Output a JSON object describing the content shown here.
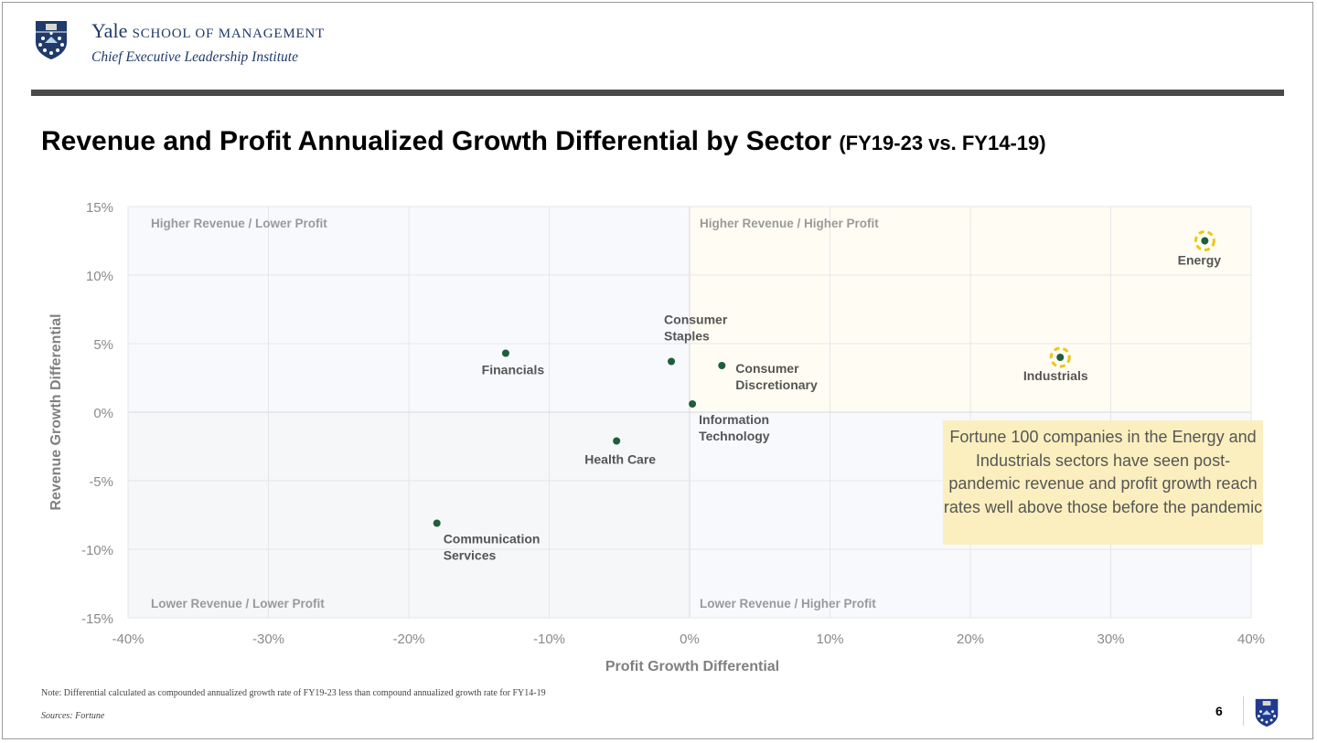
{
  "header": {
    "brand_yale": "Yale",
    "brand_school": "SCHOOL OF MANAGEMENT",
    "brand_institute": "Chief Executive Leadership Institute",
    "logo_icon": "yale-shield-icon"
  },
  "slide": {
    "title": "Revenue and Profit Annualized Growth Differential by Sector",
    "title_suffix": "(FY19-23 vs. FY14-19)",
    "callout": "Fortune 100 companies in the Energy and Industrials sectors have seen post-pandemic revenue and profit growth reach rates well above those before the pandemic",
    "note": "Note: Differential calculated as compounded annualized growth rate of FY19-23 less than compound annualized growth rate for FY14-19",
    "sources": "Sources: Fortune",
    "page_number": "6"
  },
  "colors": {
    "point": "#1e5e3a",
    "highlight_ring": "#f0c419",
    "quadrant_upper_right": "#fffdf3",
    "quadrant_other": "#f7f9fd",
    "lower_left": "#f6f7f9",
    "callout_bg": "#fcefbf",
    "brand_blue": "#1f3a6b"
  },
  "chart_data": {
    "type": "scatter",
    "title": "Revenue and Profit Annualized Growth Differential by Sector (FY19-23 vs. FY14-19)",
    "xlabel": "Profit Growth Differential",
    "ylabel": "Revenue Growth Differential",
    "xlim": [
      -40,
      40
    ],
    "ylim": [
      -15,
      15
    ],
    "x_ticks": [
      -40,
      -30,
      -20,
      -10,
      0,
      10,
      20,
      30,
      40
    ],
    "y_ticks": [
      -15,
      -10,
      -5,
      0,
      5,
      10,
      15
    ],
    "x_tick_labels": [
      "-40%",
      "-30%",
      "-20%",
      "-10%",
      "0%",
      "10%",
      "20%",
      "30%",
      "40%"
    ],
    "y_tick_labels": [
      "-15%",
      "-10%",
      "-5%",
      "0%",
      "5%",
      "10%",
      "15%"
    ],
    "grid": true,
    "quadrant_labels": {
      "upper_left": "Higher Revenue / Lower Profit",
      "upper_right": "Higher Revenue / Higher Profit",
      "lower_left": "Lower Revenue / Lower Profit",
      "lower_right": "Lower Revenue / Higher Profit"
    },
    "points": [
      {
        "name": "Energy",
        "label_lines": [
          "Energy"
        ],
        "x": 36.7,
        "y": 12.5,
        "highlight": true,
        "label_pos": "below"
      },
      {
        "name": "Industrials",
        "label_lines": [
          "Industrials"
        ],
        "x": 26.4,
        "y": 4.0,
        "highlight": true,
        "label_pos": "below"
      },
      {
        "name": "Consumer Staples",
        "label_lines": [
          "Consumer",
          "Staples"
        ],
        "x": -1.3,
        "y": 3.7,
        "highlight": false,
        "label_pos": "above"
      },
      {
        "name": "Consumer Discretionary",
        "label_lines": [
          "Consumer",
          "Discretionary"
        ],
        "x": 2.3,
        "y": 3.4,
        "highlight": false,
        "label_pos": "right"
      },
      {
        "name": "Information Technology",
        "label_lines": [
          "Information",
          "Technology"
        ],
        "x": 0.2,
        "y": 0.6,
        "highlight": false,
        "label_pos": "below-right"
      },
      {
        "name": "Financials",
        "label_lines": [
          "Financials"
        ],
        "x": -13.1,
        "y": 4.3,
        "highlight": false,
        "label_pos": "below"
      },
      {
        "name": "Health Care",
        "label_lines": [
          "Health Care"
        ],
        "x": -5.2,
        "y": -2.1,
        "highlight": false,
        "label_pos": "below"
      },
      {
        "name": "Communication Services",
        "label_lines": [
          "Communication",
          "Services"
        ],
        "x": -18.0,
        "y": -8.1,
        "highlight": false,
        "label_pos": "below-right"
      }
    ]
  }
}
